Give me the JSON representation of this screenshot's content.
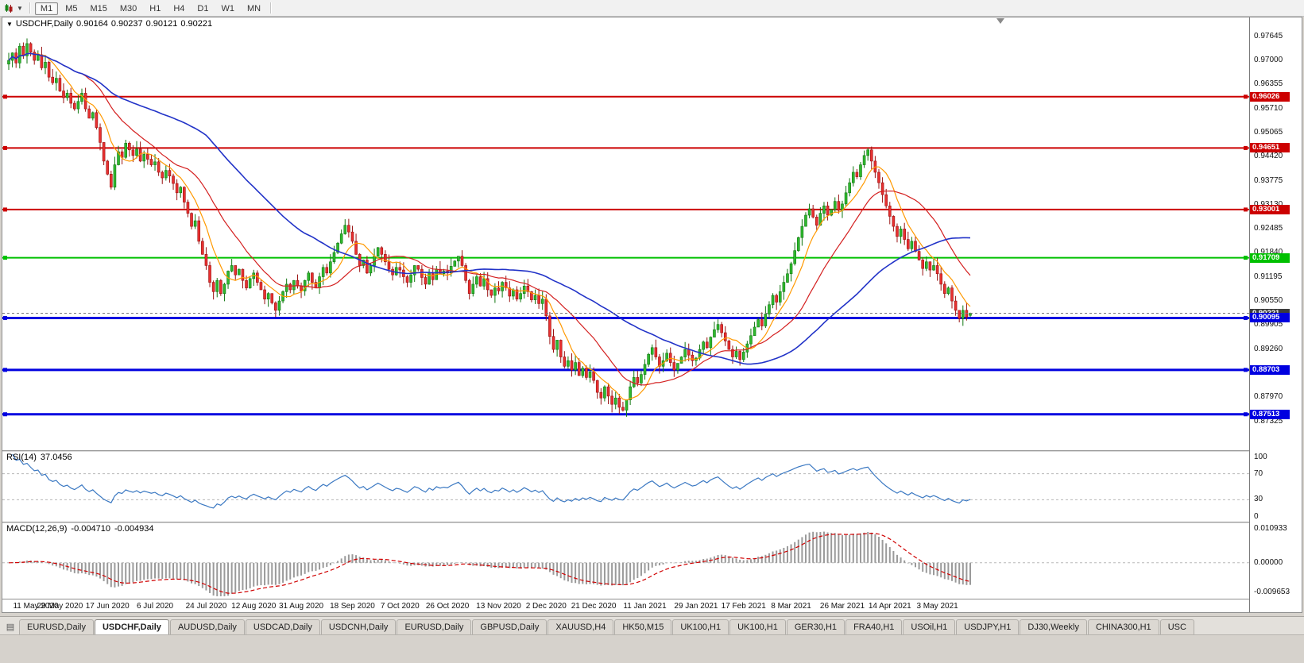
{
  "toolbar": {
    "chart_icon": "candlestick-chart-icon",
    "dropdown_icon": "chevron-down-icon",
    "periods": [
      {
        "label": "M1",
        "active": true
      },
      {
        "label": "M5",
        "active": false
      },
      {
        "label": "M15",
        "active": false
      },
      {
        "label": "M30",
        "active": false
      },
      {
        "label": "H1",
        "active": false
      },
      {
        "label": "H4",
        "active": false
      },
      {
        "label": "D1",
        "active": false
      },
      {
        "label": "W1",
        "active": false
      },
      {
        "label": "MN",
        "active": false
      }
    ]
  },
  "chart_header": {
    "symbol": "USDCHF,Daily",
    "open": "0.90164",
    "high": "0.90237",
    "low": "0.90121",
    "close": "0.90221"
  },
  "tabs": [
    {
      "label": "EURUSD,Daily",
      "active": false
    },
    {
      "label": "USDCHF,Daily",
      "active": true
    },
    {
      "label": "AUDUSD,Daily",
      "active": false
    },
    {
      "label": "USDCAD,Daily",
      "active": false
    },
    {
      "label": "USDCNH,Daily",
      "active": false
    },
    {
      "label": "EURUSD,Daily",
      "active": false
    },
    {
      "label": "GBPUSD,Daily",
      "active": false
    },
    {
      "label": "XAUUSD,H4",
      "active": false
    },
    {
      "label": "HK50,M15",
      "active": false
    },
    {
      "label": "UK100,H1",
      "active": false
    },
    {
      "label": "UK100,H1",
      "active": false
    },
    {
      "label": "GER30,H1",
      "active": false
    },
    {
      "label": "FRA40,H1",
      "active": false
    },
    {
      "label": "USOil,H1",
      "active": false
    },
    {
      "label": "USDJPY,H1",
      "active": false
    },
    {
      "label": "DJ30,Weekly",
      "active": false
    },
    {
      "label": "CHINA300,H1",
      "active": false
    },
    {
      "label": "USC",
      "active": false
    }
  ],
  "chart_data": {
    "type": "candlestick",
    "symbol": "USDCHF",
    "timeframe": "Daily",
    "y_axis": {
      "range": [
        0.8655,
        0.9815
      ],
      "ticks": [
        "0.97645",
        "0.97000",
        "0.96355",
        "0.95710",
        "0.95065",
        "0.94420",
        "0.93775",
        "0.93130",
        "0.92485",
        "0.91840",
        "0.91195",
        "0.90550",
        "0.89905",
        "0.89260",
        "0.88615",
        "0.87970",
        "0.87325"
      ]
    },
    "x_axis": {
      "labels": [
        {
          "text": "11 May 2020",
          "i": 0
        },
        {
          "text": "29 May 2020",
          "i": 14
        },
        {
          "text": "17 Jun 2020",
          "i": 27
        },
        {
          "text": "6 Jul 2020",
          "i": 40
        },
        {
          "text": "24 Jul 2020",
          "i": 54
        },
        {
          "text": "12 Aug 2020",
          "i": 67
        },
        {
          "text": "31 Aug 2020",
          "i": 80
        },
        {
          "text": "18 Sep 2020",
          "i": 94
        },
        {
          "text": "7 Oct 2020",
          "i": 107
        },
        {
          "text": "26 Oct 2020",
          "i": 120
        },
        {
          "text": "13 Nov 2020",
          "i": 134
        },
        {
          "text": "2 Dec 2020",
          "i": 147
        },
        {
          "text": "21 Dec 2020",
          "i": 160
        },
        {
          "text": "11 Jan 2021",
          "i": 174
        },
        {
          "text": "29 Jan 2021",
          "i": 188
        },
        {
          "text": "17 Feb 2021",
          "i": 201
        },
        {
          "text": "8 Mar 2021",
          "i": 214
        },
        {
          "text": "26 Mar 2021",
          "i": 228
        },
        {
          "text": "14 Apr 2021",
          "i": 241
        },
        {
          "text": "3 May 2021",
          "i": 254
        }
      ]
    },
    "first_open": 0.969,
    "last_ohlc": {
      "open": 0.90164,
      "high": 0.90237,
      "low": 0.90121,
      "close": 0.90221
    },
    "closes": [
      0.97,
      0.972,
      0.9693,
      0.9738,
      0.9712,
      0.9745,
      0.9722,
      0.97,
      0.9715,
      0.968,
      0.9695,
      0.9655,
      0.964,
      0.9652,
      0.9618,
      0.96,
      0.9612,
      0.9585,
      0.957,
      0.959,
      0.9612,
      0.957,
      0.9545,
      0.956,
      0.952,
      0.948,
      0.943,
      0.9395,
      0.936,
      0.942,
      0.9455,
      0.944,
      0.9478,
      0.946,
      0.9445,
      0.9462,
      0.943,
      0.9448,
      0.9435,
      0.942,
      0.9428,
      0.94,
      0.9385,
      0.9405,
      0.939,
      0.937,
      0.9345,
      0.936,
      0.932,
      0.929,
      0.9255,
      0.927,
      0.9215,
      0.918,
      0.915,
      0.9105,
      0.908,
      0.911,
      0.9075,
      0.91,
      0.9135,
      0.915,
      0.9125,
      0.914,
      0.911,
      0.909,
      0.9115,
      0.913,
      0.9105,
      0.9085,
      0.906,
      0.9075,
      0.905,
      0.903,
      0.9055,
      0.908,
      0.91,
      0.9085,
      0.911,
      0.9095,
      0.9082,
      0.911,
      0.913,
      0.9105,
      0.909,
      0.912,
      0.9145,
      0.913,
      0.916,
      0.9185,
      0.921,
      0.9235,
      0.9258,
      0.924,
      0.9215,
      0.918,
      0.915,
      0.9165,
      0.913,
      0.915,
      0.9175,
      0.9198,
      0.918,
      0.916,
      0.914,
      0.9125,
      0.9145,
      0.9138,
      0.912,
      0.9105,
      0.9125,
      0.915,
      0.914,
      0.9118,
      0.91,
      0.913,
      0.9112,
      0.914,
      0.9128,
      0.9135,
      0.913,
      0.9148,
      0.9162,
      0.9175,
      0.915,
      0.911,
      0.9075,
      0.91,
      0.912,
      0.9095,
      0.9115,
      0.9085,
      0.907,
      0.909,
      0.9082,
      0.9105,
      0.909,
      0.9068,
      0.9085,
      0.906,
      0.9075,
      0.9095,
      0.908,
      0.9058,
      0.907,
      0.9048,
      0.906,
      0.9015,
      0.896,
      0.8925,
      0.895,
      0.8905,
      0.888,
      0.8895,
      0.887,
      0.889,
      0.8855,
      0.8875,
      0.885,
      0.8865,
      0.8842,
      0.881,
      0.8795,
      0.8825,
      0.88,
      0.8778,
      0.8795,
      0.877,
      0.8762,
      0.879,
      0.8825,
      0.885,
      0.8835,
      0.8858,
      0.8885,
      0.8912,
      0.893,
      0.8905,
      0.888,
      0.8895,
      0.8915,
      0.889,
      0.887,
      0.8888,
      0.8905,
      0.8925,
      0.891,
      0.8895,
      0.8902,
      0.8925,
      0.8945,
      0.893,
      0.8958,
      0.8978,
      0.8992,
      0.897,
      0.8948,
      0.8925,
      0.8905,
      0.892,
      0.8898,
      0.8918,
      0.894,
      0.8962,
      0.8985,
      0.9005,
      0.8988,
      0.902,
      0.9045,
      0.907,
      0.9052,
      0.908,
      0.9105,
      0.9128,
      0.9155,
      0.919,
      0.9225,
      0.9255,
      0.9285,
      0.9302,
      0.928,
      0.9258,
      0.929,
      0.931,
      0.9285,
      0.93,
      0.9322,
      0.9298,
      0.9315,
      0.9345,
      0.9372,
      0.94,
      0.9388,
      0.942,
      0.9445,
      0.946,
      0.943,
      0.94,
      0.9372,
      0.934,
      0.931,
      0.9282,
      0.9255,
      0.9228,
      0.9248,
      0.922,
      0.9195,
      0.9215,
      0.9188,
      0.9165,
      0.9142,
      0.916,
      0.9138,
      0.915,
      0.9128,
      0.91,
      0.9075,
      0.909,
      0.9055,
      0.903,
      0.9008,
      0.903,
      0.9012,
      0.90221
    ],
    "candle_colors": {
      "up_fill": "#2EB82E",
      "up_stroke": "#117711",
      "down_fill": "#E83030",
      "down_stroke": "#991111"
    },
    "overlays": [
      {
        "name": "ma-fast",
        "period": 8,
        "color": "#FF9900"
      },
      {
        "name": "ma-medium",
        "period": 21,
        "color": "#D42020"
      },
      {
        "name": "ma-slow",
        "period": 55,
        "color": "#2233C8"
      }
    ],
    "hlines": [
      {
        "price": 0.96026,
        "label": "0.96026",
        "color": "#CC0000",
        "width": 2
      },
      {
        "price": 0.94651,
        "label": "0.94651",
        "color": "#CC0000",
        "width": 2
      },
      {
        "price": 0.93001,
        "label": "0.93001",
        "color": "#CC0000",
        "width": 2
      },
      {
        "price": 0.91709,
        "label": "0.91709",
        "color": "#00C000",
        "width": 2
      },
      {
        "price": 0.90095,
        "label": "0.90095",
        "color": "#0000E0",
        "width": 3
      },
      {
        "price": 0.88703,
        "label": "0.88703",
        "color": "#0000E0",
        "width": 3
      },
      {
        "price": 0.87513,
        "label": "0.87513",
        "color": "#0000E0",
        "width": 3
      }
    ],
    "bid_line": {
      "price": 0.90221,
      "label": "0.90221",
      "color": "#777777",
      "box_color": "#3c3c3c"
    },
    "rsi": {
      "title": "RSI(14)",
      "value_display": "37.0456",
      "value": 37.0456,
      "axis_labels": [
        "100",
        "70",
        "30",
        "0"
      ],
      "axis_values": [
        100,
        70,
        30,
        0
      ],
      "levels": [
        70,
        30
      ],
      "line_color": "#3A78C2"
    },
    "macd": {
      "title": "MACD(12,26,9)",
      "main_display": "-0.004710",
      "signal_display": "-0.004934",
      "main": -0.00471,
      "signal": -0.004934,
      "axis_labels": [
        "0.010933",
        "0.00000",
        "-0.009653"
      ],
      "axis_max": 0.010933,
      "axis_min": -0.009653,
      "hist_color": "#9a9a9a",
      "signal_color": "#D00000"
    }
  }
}
